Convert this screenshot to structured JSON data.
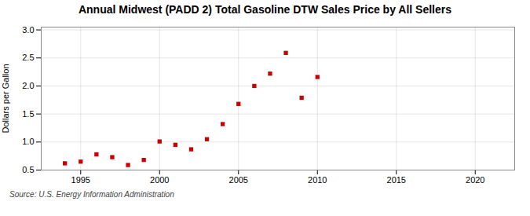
{
  "chart_data": {
    "type": "scatter",
    "title": "Annual Midwest (PADD 2) Total Gasoline DTW Sales Price by All Sellers",
    "ylabel": "Dollars per Gallon",
    "annotations": [
      "Source: U.S. Energy Information Administration"
    ],
    "x": [
      1994,
      1995,
      1996,
      1997,
      1998,
      1999,
      2000,
      2001,
      2002,
      2003,
      2004,
      2005,
      2006,
      2007,
      2008,
      2009,
      2010
    ],
    "values": [
      0.62,
      0.65,
      0.78,
      0.73,
      0.59,
      0.68,
      1.01,
      0.95,
      0.87,
      1.05,
      1.32,
      1.68,
      2.0,
      2.22,
      2.59,
      1.79,
      2.16
    ],
    "color": "#cc0000",
    "marker": "square",
    "xlim": [
      1992.5,
      2022.5
    ],
    "xticks": [
      1995,
      2000,
      2005,
      2010,
      2015,
      2020
    ],
    "ylim": [
      0.5,
      3.05
    ],
    "yticks": [
      0.5,
      {
        "value": 1.0,
        "label": "1.0"
      },
      1.5,
      {
        "value": 2.0,
        "label": "2.0"
      },
      2.5,
      {
        "value": 3.0,
        "label": "3.0"
      }
    ],
    "grid": true
  }
}
